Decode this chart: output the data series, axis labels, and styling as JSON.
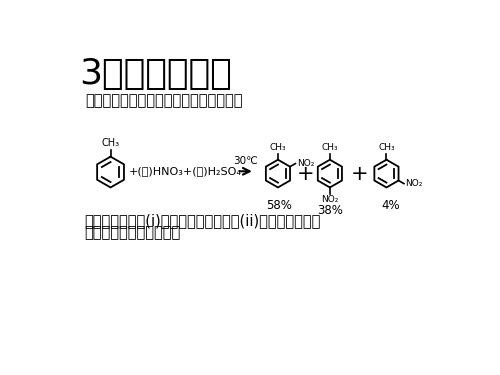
{
  "title": "3．甲苯的硝化",
  "subtitle": "甲苯的硝化反应式及实验数据如下所示：",
  "desc1": "实验情况说明：(i)甲苯比苯容易硝化，(ii)甲苯硝化时，主",
  "desc2": "要得到邻位和对位产物。",
  "condition": "30℃",
  "percent1": "58%",
  "percent2": "38%",
  "percent3": "4%",
  "bg_color": "#ffffff",
  "text_color": "#000000",
  "title_fontsize": 26,
  "body_fontsize": 10.5,
  "chem_label_fontsize": 7
}
